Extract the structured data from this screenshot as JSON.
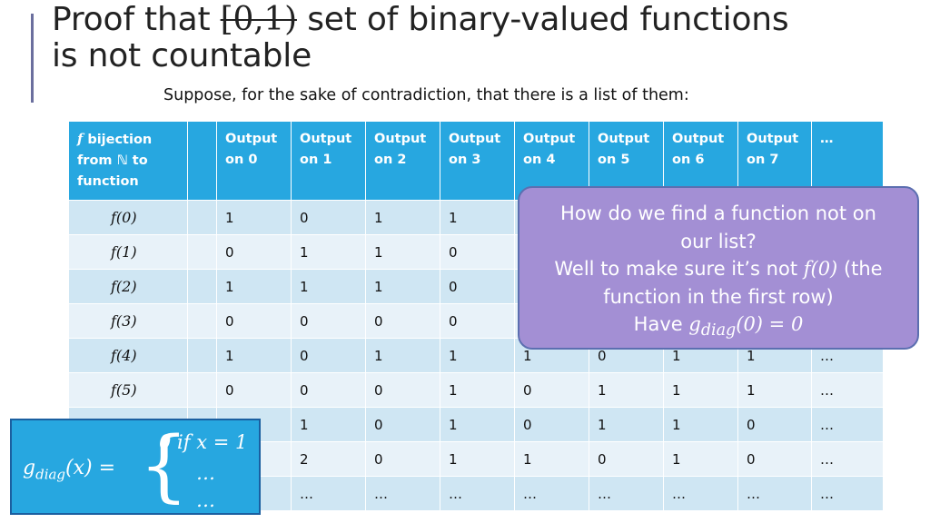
{
  "title": {
    "before": "Proof that ",
    "struck": "[0,1)",
    "after": " set of binary-valued functions",
    "line2": "is not countable"
  },
  "subtitle": "Suppose, for the sake of contradiction, that there is a list of them:",
  "table": {
    "header": {
      "corner_symbol": "f",
      "corner_text": "bijection from ℕ to function",
      "blank": "",
      "columns": [
        "Output on 0",
        "Output on 1",
        "Output on 2",
        "Output on 3",
        "Output on 4",
        "Output on 5",
        "Output on 6",
        "Output on 7"
      ],
      "ellipsis": "…"
    },
    "rows": [
      {
        "label": "f(0)",
        "cells": [
          "1",
          "0",
          "1",
          "1",
          "",
          "",
          "",
          ""
        ],
        "ellipsis": ""
      },
      {
        "label": "f(1)",
        "cells": [
          "0",
          "1",
          "1",
          "0",
          "",
          "",
          "",
          ""
        ],
        "ellipsis": ""
      },
      {
        "label": "f(2)",
        "cells": [
          "1",
          "1",
          "1",
          "0",
          "",
          "",
          "",
          ""
        ],
        "ellipsis": ""
      },
      {
        "label": "f(3)",
        "cells": [
          "0",
          "0",
          "0",
          "0",
          "",
          "",
          "",
          ""
        ],
        "ellipsis": ""
      },
      {
        "label": "f(4)",
        "cells": [
          "1",
          "0",
          "1",
          "1",
          "1",
          "0",
          "1",
          "1"
        ],
        "ellipsis": "…"
      },
      {
        "label": "f(5)",
        "cells": [
          "0",
          "0",
          "0",
          "1",
          "0",
          "1",
          "1",
          "1"
        ],
        "ellipsis": "…"
      },
      {
        "label": "",
        "cells": [
          "",
          "1",
          "0",
          "1",
          "0",
          "1",
          "1",
          "0"
        ],
        "ellipsis": "…"
      },
      {
        "label": "",
        "cells": [
          "",
          "2",
          "0",
          "1",
          "1",
          "0",
          "1",
          "0"
        ],
        "ellipsis": "…"
      },
      {
        "label": "",
        "cells": [
          "",
          "…",
          "…",
          "…",
          "…",
          "…",
          "…",
          "…"
        ],
        "ellipsis": "…"
      }
    ]
  },
  "callout": {
    "line1": "How do we find a function not on",
    "line2": "our list?",
    "line3_text": "Well to make sure it’s not ",
    "line3_math": "f(0)",
    "line3_tail": " (the",
    "line4": "function in the first row)",
    "line5_text": "Have ",
    "line5_math": "g",
    "line5_sub": "diag",
    "line5_rest": "(0) = 0"
  },
  "definition": {
    "lhs_main": "g",
    "lhs_sub": "diag",
    "lhs_rest": "(x) =",
    "case1": "0 if x = 1",
    "case2": "…",
    "case3": "…"
  },
  "colors": {
    "header_blue": "#27a7e0",
    "row_light": "#cfe6f3",
    "row_lighter": "#e8f2f9",
    "callout_purple": "#a38fd4",
    "accent": "#6b6f9e"
  }
}
